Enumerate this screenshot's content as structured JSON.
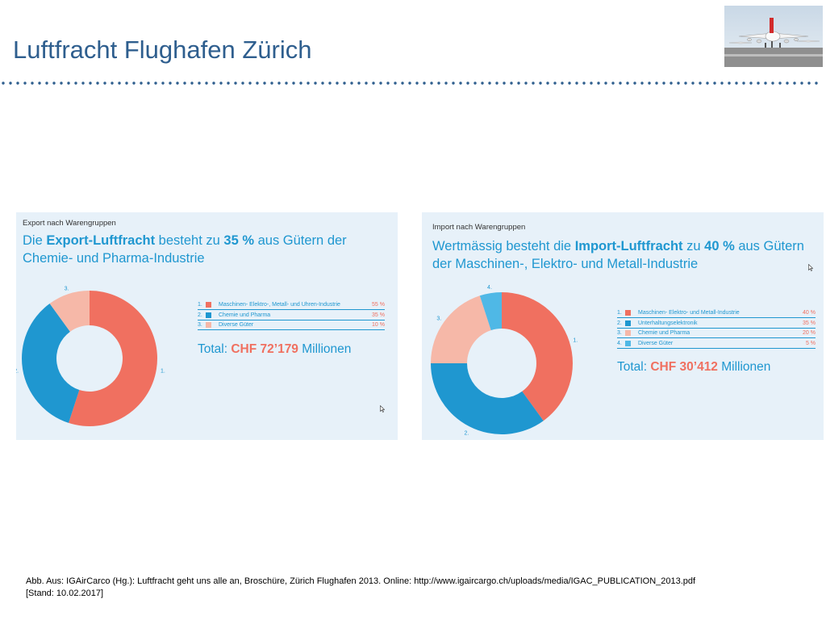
{
  "slide": {
    "title": "Luftfracht Flughafen Zürich",
    "caption_line1": "Abb. Aus: IGAirCarco (Hg.): Luftfracht geht uns alle an, Broschüre, Zürich Flughafen 2013. Online: http://www.igaircargo.ch/uploads/media/IGAC_PUBLICATION_2013.pdf",
    "caption_line2": "[Stand: 10.02.2017]"
  },
  "chart_data": [
    {
      "type": "pie",
      "kicker": "Export nach Warengruppen",
      "headline_pre": "Die ",
      "headline_bold1": "Export-Luftfracht",
      "headline_mid": " besteht zu ",
      "headline_bold2": "35 %",
      "headline_post": " aus Gütern der Chemie- und Pharma-Industrie",
      "categories": [
        "Maschinen- Elektro-, Metall- und Uhren-Industrie",
        "Chemie und Pharma",
        "Diverse Güter"
      ],
      "values": [
        55,
        35,
        10
      ],
      "value_labels": [
        "55 %",
        "35 %",
        "10 %"
      ],
      "numbers": [
        "1.",
        "2.",
        "3."
      ],
      "colors": [
        "#f07060",
        "#1f97d0",
        "#f6b8a8"
      ],
      "total_label": "Total: ",
      "total_value": "CHF 72’179",
      "total_unit": " Millionen"
    },
    {
      "type": "pie",
      "kicker": "Import nach Warengruppen",
      "headline_pre": "Wertmässig besteht die ",
      "headline_bold1": "Import-Luftfracht",
      "headline_mid": " zu ",
      "headline_bold2": "40 %",
      "headline_post": " aus Gütern der Maschinen-, Elektro- und Metall-Industrie",
      "categories": [
        "Maschinen- Elektro- und Metall-Industrie",
        "Unterhaltungselektronik",
        "Chemie und Pharma",
        "Diverse Güter"
      ],
      "values": [
        40,
        35,
        20,
        5
      ],
      "value_labels": [
        "40 %",
        "35 %",
        "20 %",
        "5 %"
      ],
      "numbers": [
        "1.",
        "2.",
        "3.",
        "4."
      ],
      "colors": [
        "#f07060",
        "#1f97d0",
        "#f6b8a8",
        "#4fb8e6"
      ],
      "total_label": "Total: ",
      "total_value": "CHF 30’412",
      "total_unit": " Millionen"
    }
  ]
}
